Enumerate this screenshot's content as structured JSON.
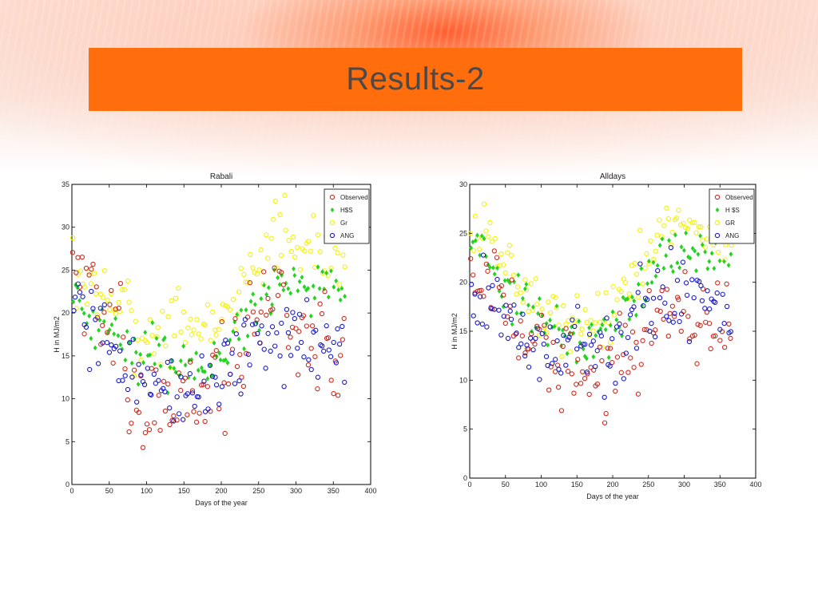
{
  "slide": {
    "title": "Results-2"
  },
  "chart_data": [
    {
      "type": "scatter",
      "title": "Rabali",
      "xlabel": "Days of the year",
      "ylabel": "H in MJ/m2",
      "xlim": [
        0,
        400
      ],
      "ylim": [
        0,
        35
      ],
      "xticks": [
        0,
        50,
        100,
        150,
        200,
        250,
        300,
        350,
        400
      ],
      "yticks": [
        0,
        5,
        10,
        15,
        20,
        25,
        30,
        35
      ],
      "legend_position": "top-right",
      "series": [
        {
          "name": "Observed",
          "color": "#cc2a1e",
          "marker": "circle"
        },
        {
          "name": "H$S",
          "color": "#22d41f",
          "marker": "diamond"
        },
        {
          "name": "Gr",
          "color": "#f2f20a",
          "marker": "circle"
        },
        {
          "name": "ANG",
          "color": "#1a1ac8",
          "marker": "circle"
        }
      ],
      "curves": {
        "Observed": [
          [
            1,
            28
          ],
          [
            30,
            22
          ],
          [
            60,
            18
          ],
          [
            90,
            8
          ],
          [
            120,
            10
          ],
          [
            150,
            11
          ],
          [
            180,
            12
          ],
          [
            210,
            14
          ],
          [
            240,
            18
          ],
          [
            270,
            22
          ],
          [
            300,
            20
          ],
          [
            330,
            16
          ],
          [
            365,
            15
          ]
        ],
        "H$S": [
          [
            1,
            22
          ],
          [
            30,
            20
          ],
          [
            60,
            18
          ],
          [
            90,
            15
          ],
          [
            120,
            15
          ],
          [
            150,
            14
          ],
          [
            180,
            14
          ],
          [
            210,
            16
          ],
          [
            240,
            20
          ],
          [
            270,
            23
          ],
          [
            300,
            24
          ],
          [
            330,
            23
          ],
          [
            365,
            22
          ]
        ],
        "Gr": [
          [
            1,
            25
          ],
          [
            30,
            23
          ],
          [
            60,
            21
          ],
          [
            90,
            17
          ],
          [
            120,
            18
          ],
          [
            150,
            19
          ],
          [
            180,
            18
          ],
          [
            210,
            20
          ],
          [
            240,
            25
          ],
          [
            270,
            29
          ],
          [
            300,
            29
          ],
          [
            330,
            27
          ],
          [
            365,
            26
          ]
        ],
        "ANG": [
          [
            1,
            20
          ],
          [
            30,
            18
          ],
          [
            60,
            16
          ],
          [
            90,
            12
          ],
          [
            120,
            11
          ],
          [
            150,
            12
          ],
          [
            180,
            11
          ],
          [
            210,
            13
          ],
          [
            240,
            16
          ],
          [
            270,
            18
          ],
          [
            300,
            18
          ],
          [
            330,
            16
          ],
          [
            365,
            15
          ]
        ]
      },
      "spread": {
        "Observed": 8,
        "H$S": 4,
        "Gr": 5,
        "ANG": 6
      },
      "seed": 7
    },
    {
      "type": "scatter",
      "title": "Alldays",
      "xlabel": "Days of the year",
      "ylabel": "H in MJ/m2",
      "xlim": [
        0,
        400
      ],
      "ylim": [
        0,
        30
      ],
      "xticks": [
        0,
        50,
        100,
        150,
        200,
        250,
        300,
        350,
        400
      ],
      "yticks": [
        0,
        5,
        10,
        15,
        20,
        25,
        30
      ],
      "legend_position": "top-right",
      "series": [
        {
          "name": "Observed",
          "color": "#cc2a1e",
          "marker": "circle"
        },
        {
          "name": "H $S",
          "color": "#22d41f",
          "marker": "diamond"
        },
        {
          "name": "GR",
          "color": "#f2f20a",
          "marker": "circle"
        },
        {
          "name": "ANG",
          "color": "#1a1ac8",
          "marker": "circle"
        }
      ],
      "curves": {
        "Observed": [
          [
            1,
            22
          ],
          [
            30,
            19
          ],
          [
            60,
            16
          ],
          [
            90,
            12
          ],
          [
            120,
            11
          ],
          [
            150,
            11
          ],
          [
            180,
            11
          ],
          [
            210,
            12
          ],
          [
            240,
            15
          ],
          [
            270,
            18
          ],
          [
            300,
            18
          ],
          [
            330,
            16
          ],
          [
            365,
            16
          ]
        ],
        "H $S": [
          [
            1,
            25
          ],
          [
            30,
            22
          ],
          [
            60,
            19
          ],
          [
            90,
            16
          ],
          [
            120,
            15
          ],
          [
            150,
            14
          ],
          [
            180,
            14
          ],
          [
            210,
            16
          ],
          [
            240,
            19
          ],
          [
            270,
            22
          ],
          [
            300,
            23
          ],
          [
            330,
            23
          ],
          [
            365,
            23
          ]
        ],
        "GR": [
          [
            1,
            26
          ],
          [
            30,
            24
          ],
          [
            60,
            21
          ],
          [
            90,
            17
          ],
          [
            120,
            17
          ],
          [
            150,
            16
          ],
          [
            180,
            16
          ],
          [
            210,
            18
          ],
          [
            240,
            22
          ],
          [
            270,
            26
          ],
          [
            300,
            26
          ],
          [
            330,
            25
          ],
          [
            365,
            25
          ]
        ],
        "ANG": [
          [
            1,
            19
          ],
          [
            30,
            18
          ],
          [
            60,
            16
          ],
          [
            90,
            13
          ],
          [
            120,
            12
          ],
          [
            150,
            13
          ],
          [
            180,
            12
          ],
          [
            210,
            14
          ],
          [
            240,
            17
          ],
          [
            270,
            19
          ],
          [
            300,
            19
          ],
          [
            330,
            17
          ],
          [
            365,
            17
          ]
        ]
      },
      "spread": {
        "Observed": 6,
        "H $S": 3.5,
        "GR": 4,
        "ANG": 5
      },
      "seed": 19
    }
  ]
}
